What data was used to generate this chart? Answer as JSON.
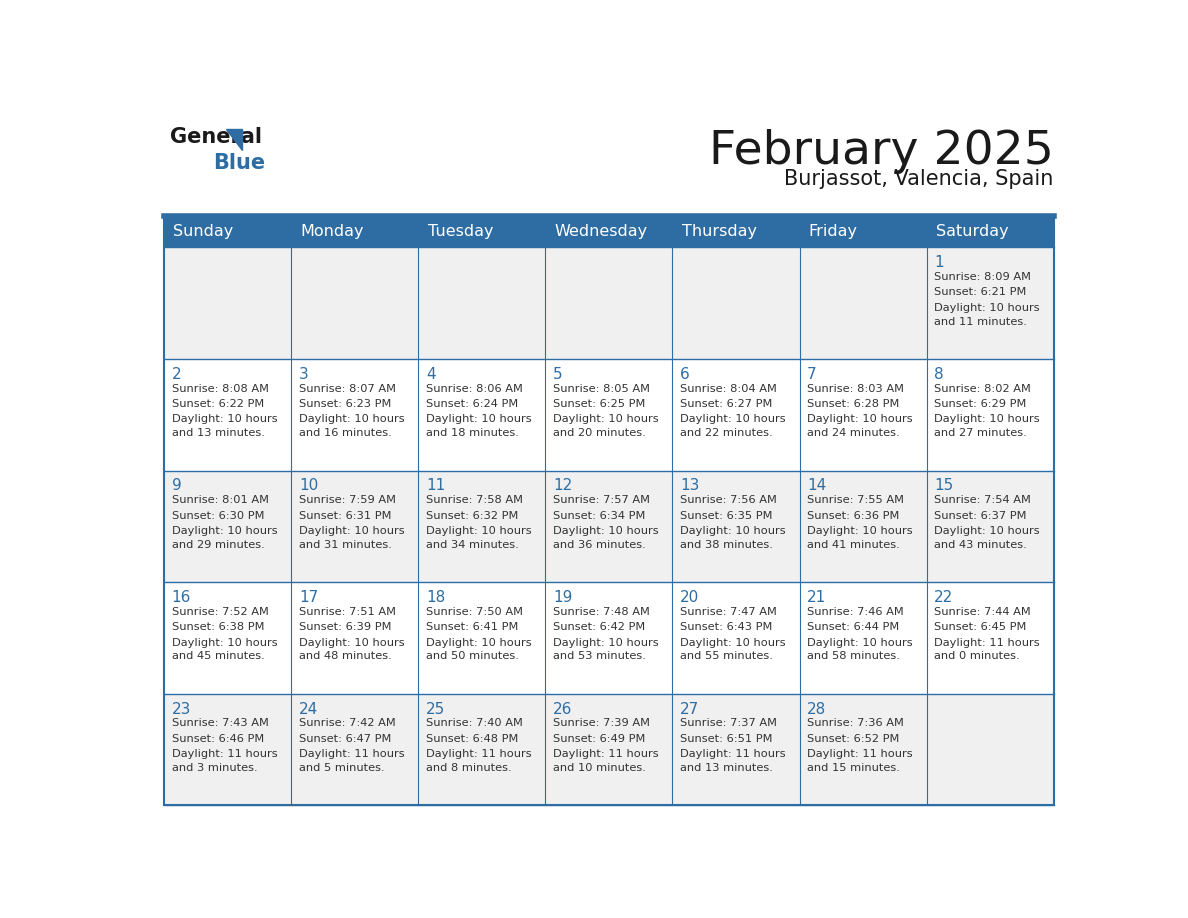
{
  "title": "February 2025",
  "subtitle": "Burjassot, Valencia, Spain",
  "header_bg": "#2E6DA4",
  "header_text": "#FFFFFF",
  "day_names": [
    "Sunday",
    "Monday",
    "Tuesday",
    "Wednesday",
    "Thursday",
    "Friday",
    "Saturday"
  ],
  "cell_bg_odd": "#F0F0F0",
  "cell_bg_even": "#FFFFFF",
  "border_color": "#2E6DA4",
  "title_color": "#1a1a1a",
  "subtitle_color": "#1a1a1a",
  "date_color": "#2E6DA4",
  "text_color": "#333333",
  "weeks": [
    [
      null,
      null,
      null,
      null,
      null,
      null,
      {
        "day": 1,
        "sunrise": "8:09 AM",
        "sunset": "6:21 PM",
        "daylight_line1": "Daylight: 10 hours",
        "daylight_line2": "and 11 minutes."
      }
    ],
    [
      {
        "day": 2,
        "sunrise": "8:08 AM",
        "sunset": "6:22 PM",
        "daylight_line1": "Daylight: 10 hours",
        "daylight_line2": "and 13 minutes."
      },
      {
        "day": 3,
        "sunrise": "8:07 AM",
        "sunset": "6:23 PM",
        "daylight_line1": "Daylight: 10 hours",
        "daylight_line2": "and 16 minutes."
      },
      {
        "day": 4,
        "sunrise": "8:06 AM",
        "sunset": "6:24 PM",
        "daylight_line1": "Daylight: 10 hours",
        "daylight_line2": "and 18 minutes."
      },
      {
        "day": 5,
        "sunrise": "8:05 AM",
        "sunset": "6:25 PM",
        "daylight_line1": "Daylight: 10 hours",
        "daylight_line2": "and 20 minutes."
      },
      {
        "day": 6,
        "sunrise": "8:04 AM",
        "sunset": "6:27 PM",
        "daylight_line1": "Daylight: 10 hours",
        "daylight_line2": "and 22 minutes."
      },
      {
        "day": 7,
        "sunrise": "8:03 AM",
        "sunset": "6:28 PM",
        "daylight_line1": "Daylight: 10 hours",
        "daylight_line2": "and 24 minutes."
      },
      {
        "day": 8,
        "sunrise": "8:02 AM",
        "sunset": "6:29 PM",
        "daylight_line1": "Daylight: 10 hours",
        "daylight_line2": "and 27 minutes."
      }
    ],
    [
      {
        "day": 9,
        "sunrise": "8:01 AM",
        "sunset": "6:30 PM",
        "daylight_line1": "Daylight: 10 hours",
        "daylight_line2": "and 29 minutes."
      },
      {
        "day": 10,
        "sunrise": "7:59 AM",
        "sunset": "6:31 PM",
        "daylight_line1": "Daylight: 10 hours",
        "daylight_line2": "and 31 minutes."
      },
      {
        "day": 11,
        "sunrise": "7:58 AM",
        "sunset": "6:32 PM",
        "daylight_line1": "Daylight: 10 hours",
        "daylight_line2": "and 34 minutes."
      },
      {
        "day": 12,
        "sunrise": "7:57 AM",
        "sunset": "6:34 PM",
        "daylight_line1": "Daylight: 10 hours",
        "daylight_line2": "and 36 minutes."
      },
      {
        "day": 13,
        "sunrise": "7:56 AM",
        "sunset": "6:35 PM",
        "daylight_line1": "Daylight: 10 hours",
        "daylight_line2": "and 38 minutes."
      },
      {
        "day": 14,
        "sunrise": "7:55 AM",
        "sunset": "6:36 PM",
        "daylight_line1": "Daylight: 10 hours",
        "daylight_line2": "and 41 minutes."
      },
      {
        "day": 15,
        "sunrise": "7:54 AM",
        "sunset": "6:37 PM",
        "daylight_line1": "Daylight: 10 hours",
        "daylight_line2": "and 43 minutes."
      }
    ],
    [
      {
        "day": 16,
        "sunrise": "7:52 AM",
        "sunset": "6:38 PM",
        "daylight_line1": "Daylight: 10 hours",
        "daylight_line2": "and 45 minutes."
      },
      {
        "day": 17,
        "sunrise": "7:51 AM",
        "sunset": "6:39 PM",
        "daylight_line1": "Daylight: 10 hours",
        "daylight_line2": "and 48 minutes."
      },
      {
        "day": 18,
        "sunrise": "7:50 AM",
        "sunset": "6:41 PM",
        "daylight_line1": "Daylight: 10 hours",
        "daylight_line2": "and 50 minutes."
      },
      {
        "day": 19,
        "sunrise": "7:48 AM",
        "sunset": "6:42 PM",
        "daylight_line1": "Daylight: 10 hours",
        "daylight_line2": "and 53 minutes."
      },
      {
        "day": 20,
        "sunrise": "7:47 AM",
        "sunset": "6:43 PM",
        "daylight_line1": "Daylight: 10 hours",
        "daylight_line2": "and 55 minutes."
      },
      {
        "day": 21,
        "sunrise": "7:46 AM",
        "sunset": "6:44 PM",
        "daylight_line1": "Daylight: 10 hours",
        "daylight_line2": "and 58 minutes."
      },
      {
        "day": 22,
        "sunrise": "7:44 AM",
        "sunset": "6:45 PM",
        "daylight_line1": "Daylight: 11 hours",
        "daylight_line2": "and 0 minutes."
      }
    ],
    [
      {
        "day": 23,
        "sunrise": "7:43 AM",
        "sunset": "6:46 PM",
        "daylight_line1": "Daylight: 11 hours",
        "daylight_line2": "and 3 minutes."
      },
      {
        "day": 24,
        "sunrise": "7:42 AM",
        "sunset": "6:47 PM",
        "daylight_line1": "Daylight: 11 hours",
        "daylight_line2": "and 5 minutes."
      },
      {
        "day": 25,
        "sunrise": "7:40 AM",
        "sunset": "6:48 PM",
        "daylight_line1": "Daylight: 11 hours",
        "daylight_line2": "and 8 minutes."
      },
      {
        "day": 26,
        "sunrise": "7:39 AM",
        "sunset": "6:49 PM",
        "daylight_line1": "Daylight: 11 hours",
        "daylight_line2": "and 10 minutes."
      },
      {
        "day": 27,
        "sunrise": "7:37 AM",
        "sunset": "6:51 PM",
        "daylight_line1": "Daylight: 11 hours",
        "daylight_line2": "and 13 minutes."
      },
      {
        "day": 28,
        "sunrise": "7:36 AM",
        "sunset": "6:52 PM",
        "daylight_line1": "Daylight: 11 hours",
        "daylight_line2": "and 15 minutes."
      },
      null
    ]
  ]
}
